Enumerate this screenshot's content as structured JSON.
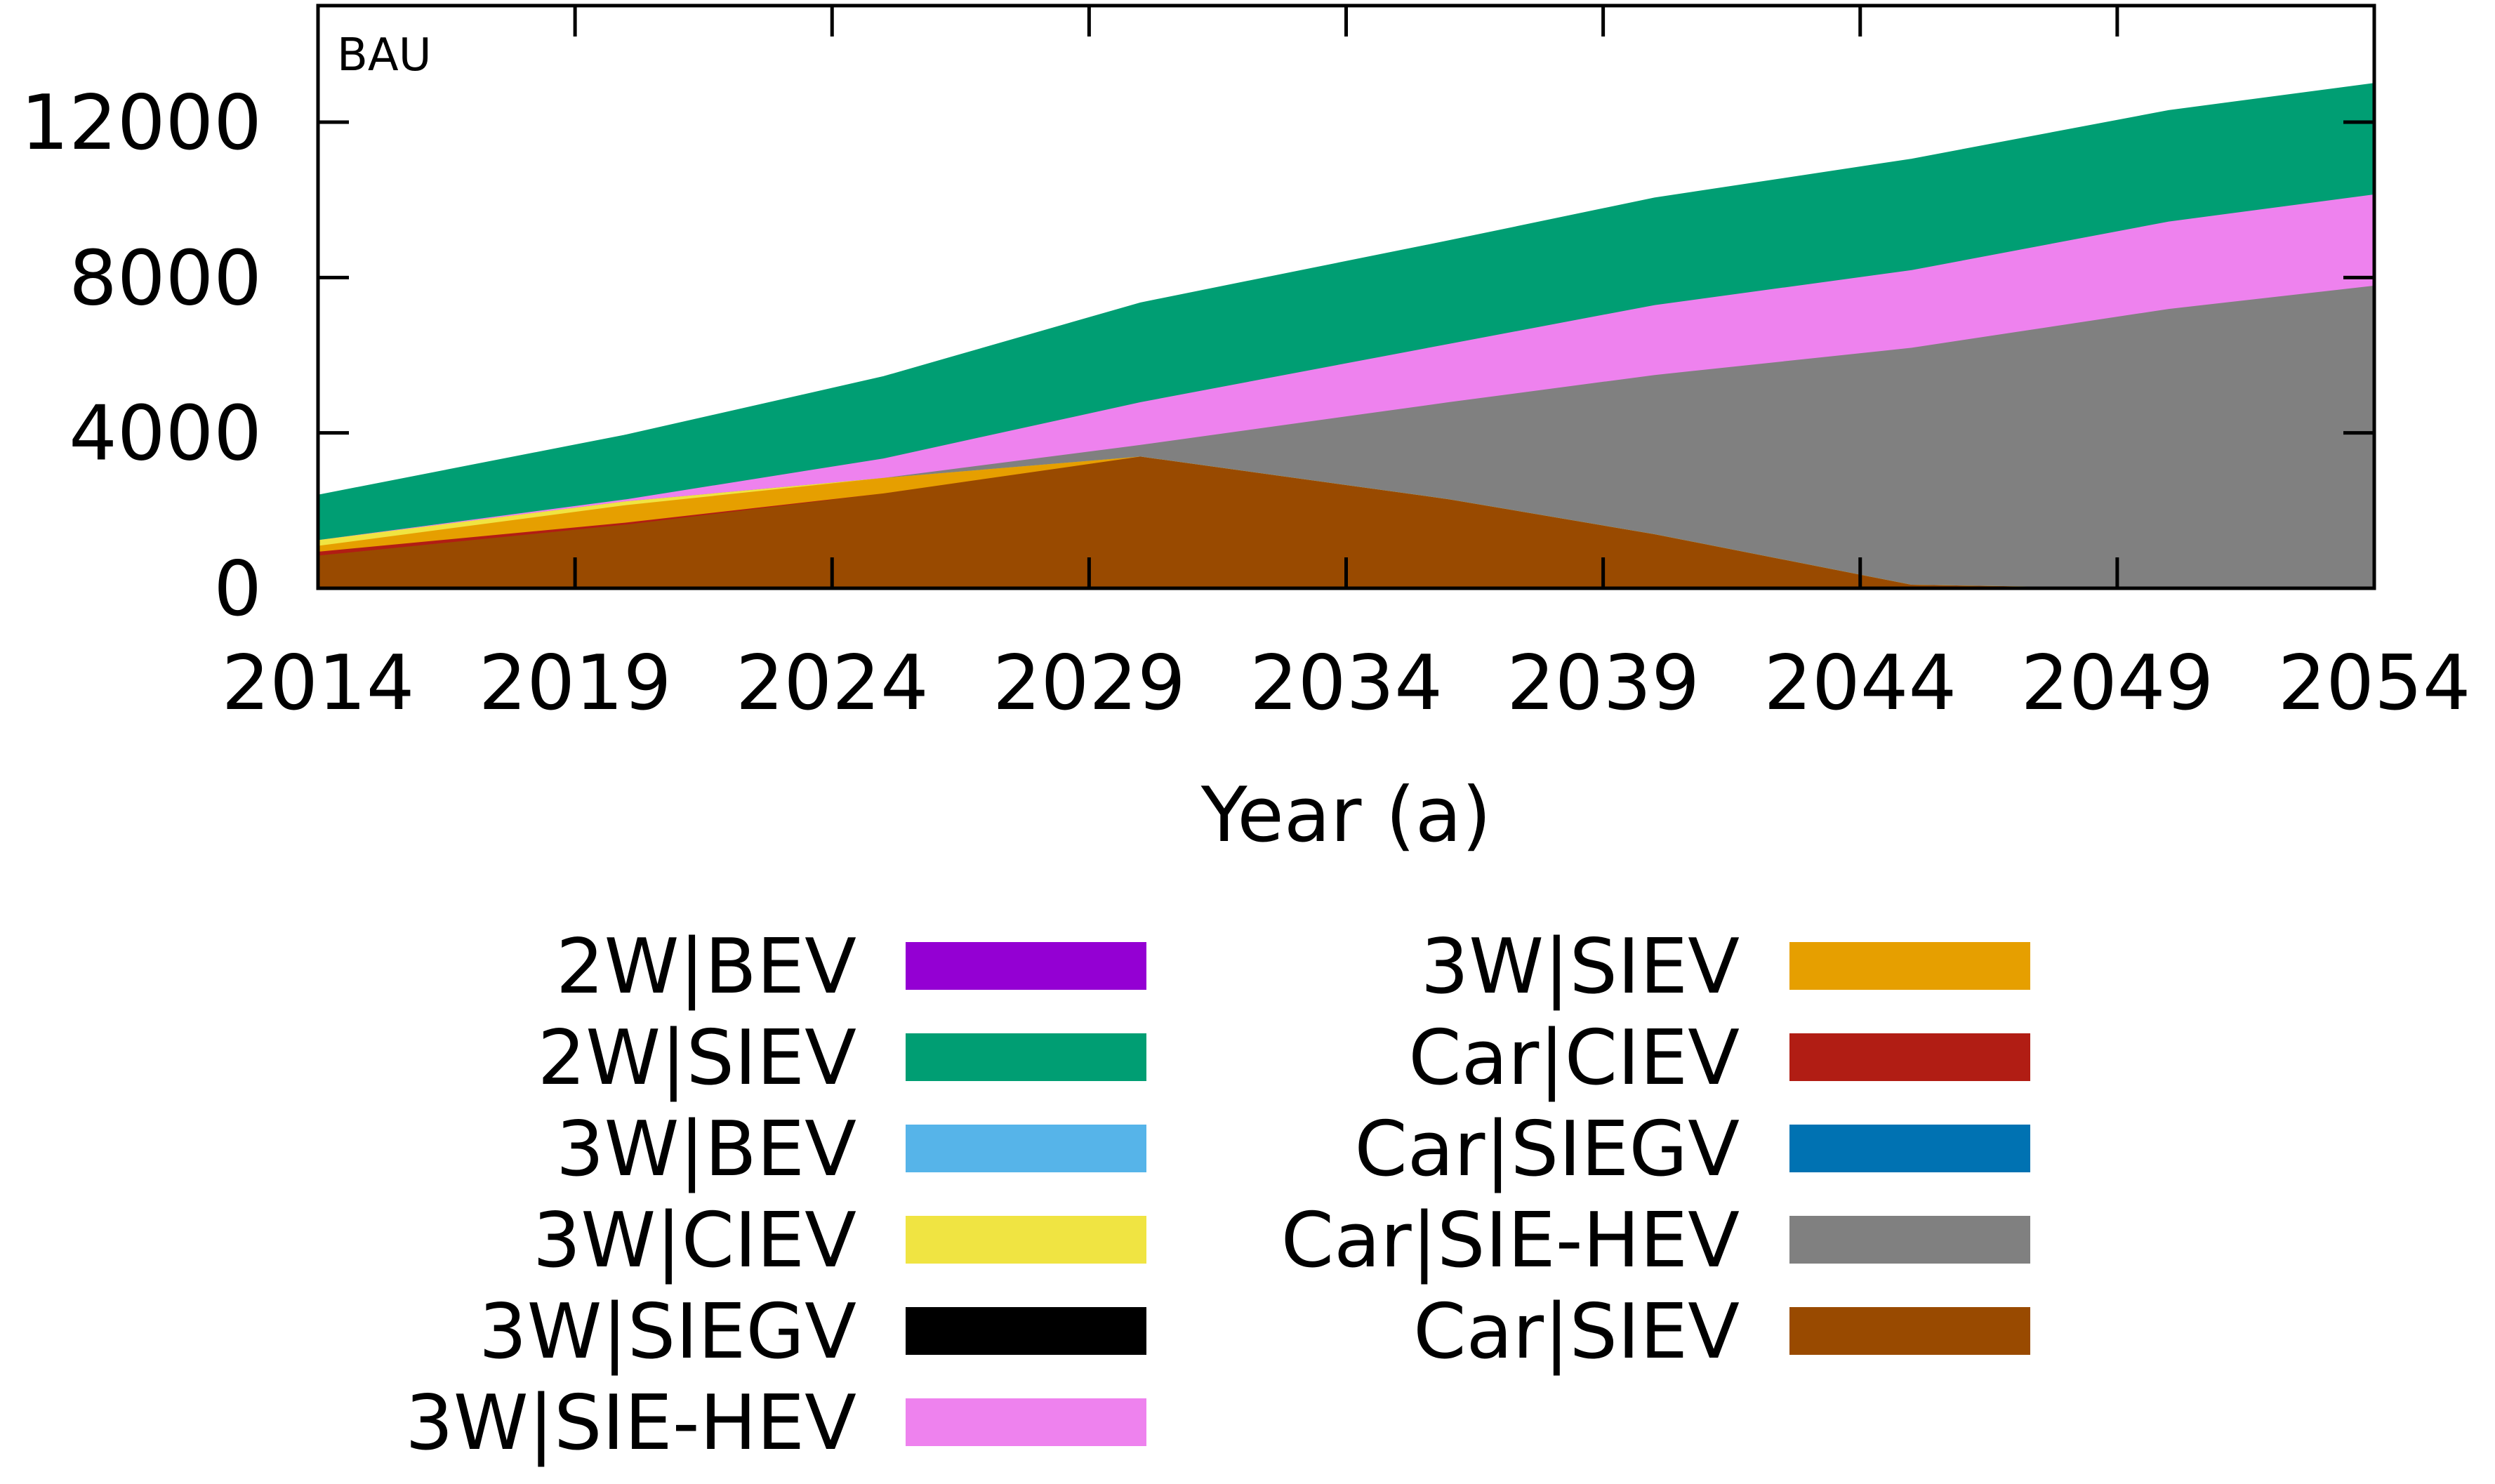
{
  "chart_data": {
    "type": "area",
    "stacked": true,
    "panel_label": "BAU",
    "xlabel": "Year (a)",
    "ylabel": "",
    "xlim": [
      2014,
      2054
    ],
    "ylim": [
      0,
      15000
    ],
    "x_ticks": [
      2014,
      2019,
      2024,
      2029,
      2034,
      2039,
      2044,
      2049,
      2054
    ],
    "y_ticks": [
      0,
      4000,
      8000,
      12000
    ],
    "grid": false,
    "legend_placement": "below-plot, two columns",
    "x": [
      2014,
      2020,
      2025,
      2030,
      2036,
      2040,
      2045,
      2050,
      2054
    ],
    "stack_order": [
      "Car|SIEV",
      "Car|CIEV",
      "3W|SIEV",
      "3W|CIEV",
      "Car|SIE-HEV",
      "3W|SIE-HEV",
      "2W|SIEV"
    ],
    "series": [
      {
        "name": "2W|BEV",
        "color": "#9400d3",
        "values": [
          0,
          0,
          0,
          0,
          0,
          0,
          0,
          0,
          0
        ]
      },
      {
        "name": "2W|SIEV",
        "color": "#009e73",
        "values": [
          1150,
          1650,
          2100,
          2550,
          2650,
          2750,
          2850,
          2850,
          2850
        ]
      },
      {
        "name": "3W|BEV",
        "color": "#56b4e9",
        "values": [
          0,
          0,
          0,
          0,
          0,
          0,
          0,
          0,
          0
        ]
      },
      {
        "name": "3W|CIEV",
        "color": "#f0e442",
        "values": [
          150,
          100,
          0,
          0,
          0,
          0,
          0,
          0,
          0
        ]
      },
      {
        "name": "3W|SIEGV",
        "color": "#000000",
        "values": [
          0,
          0,
          0,
          0,
          0,
          0,
          0,
          0,
          0
        ]
      },
      {
        "name": "3W|SIE-HEV",
        "color": "#ee82ee",
        "values": [
          0,
          50,
          500,
          1100,
          1500,
          1800,
          2000,
          2250,
          2350
        ]
      },
      {
        "name": "3W|SIEV",
        "color": "#e69f00",
        "values": [
          150,
          450,
          400,
          0,
          0,
          0,
          0,
          0,
          0
        ]
      },
      {
        "name": "Car|CIEV",
        "color": "#b11d14",
        "values": [
          100,
          50,
          0,
          0,
          0,
          0,
          0,
          0,
          0
        ]
      },
      {
        "name": "Car|SIEGV",
        "color": "#0072b2",
        "values": [
          0,
          0,
          0,
          0,
          0,
          0,
          0,
          0,
          0
        ]
      },
      {
        "name": "Car|SIE-HEV",
        "color": "#808080",
        "values": [
          0,
          0,
          0,
          300,
          2500,
          4100,
          6100,
          7200,
          7800
        ]
      },
      {
        "name": "Car|SIEV",
        "color": "#994a00",
        "values": [
          850,
          1650,
          2450,
          3400,
          2300,
          1400,
          100,
          0,
          0
        ]
      }
    ],
    "legend_columns": [
      [
        "2W|BEV",
        "2W|SIEV",
        "3W|BEV",
        "3W|CIEV",
        "3W|SIEGV",
        "3W|SIE-HEV"
      ],
      [
        "3W|SIEV",
        "Car|CIEV",
        "Car|SIEGV",
        "Car|SIE-HEV",
        "Car|SIEV"
      ]
    ]
  }
}
